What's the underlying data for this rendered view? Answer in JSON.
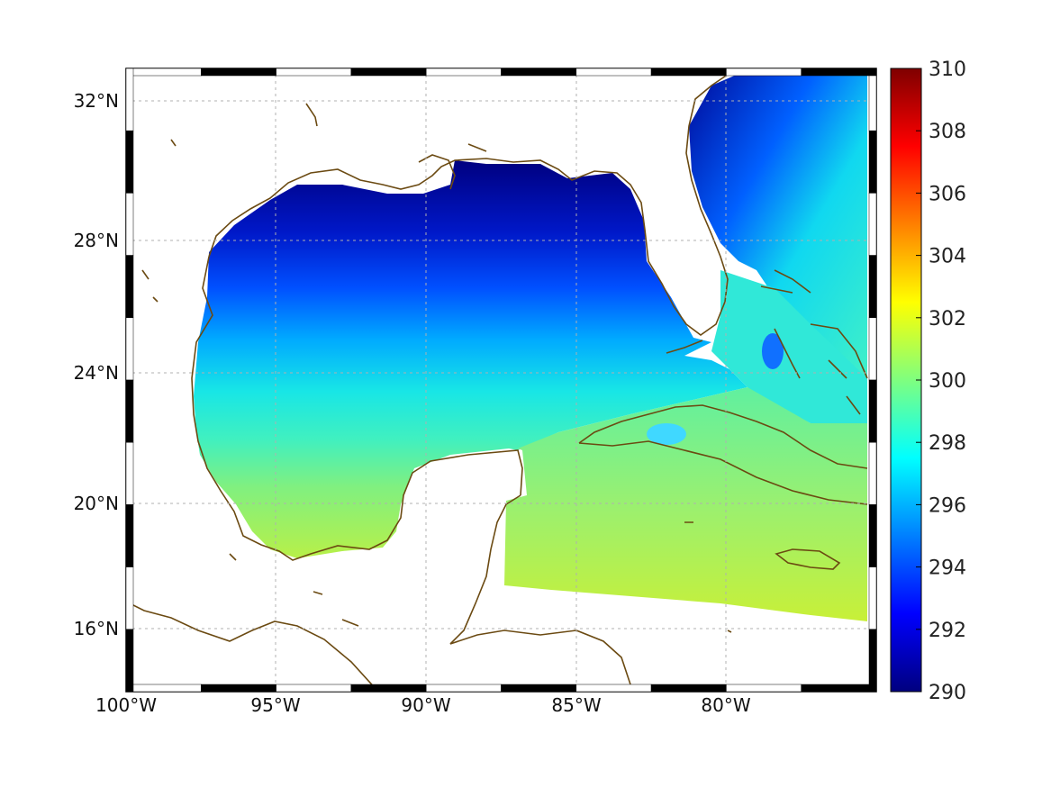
{
  "map": {
    "projection": "mercator-like",
    "lon_range_deg": [
      -100,
      -75
    ],
    "lat_range_deg": [
      14,
      33
    ],
    "grid": true,
    "frame_style": "black-white checkered border",
    "coastline_color": "#6b4a12",
    "missing_data_color": "#ffffff",
    "lon_tick_values": [
      -100,
      -95,
      -90,
      -85,
      -80
    ],
    "lat_tick_values": [
      16,
      20,
      24,
      28,
      32
    ],
    "lon_tick_labels": [
      "100°W",
      "95°W",
      "90°W",
      "85°W",
      "80°W"
    ],
    "lat_tick_labels": [
      "16°N",
      "20°N",
      "24°N",
      "28°N",
      "32°N"
    ],
    "field_description_levels": {
      "northern_gulf_and_atlantic_shelf": 290,
      "central_gulf": 297,
      "southern_gulf": 298,
      "caribbean": 300.5
    }
  },
  "colorbar": {
    "colormap": "jet",
    "min": 290,
    "max": 310,
    "tick_labels": [
      "310",
      "308",
      "306",
      "304",
      "302",
      "300",
      "298",
      "296",
      "294",
      "292",
      "290"
    ],
    "colors": [
      "#00007f",
      "#0000ff",
      "#007fff",
      "#00ffff",
      "#7fff7f",
      "#ffff00",
      "#ff7f00",
      "#ff0000",
      "#7f0000"
    ]
  }
}
